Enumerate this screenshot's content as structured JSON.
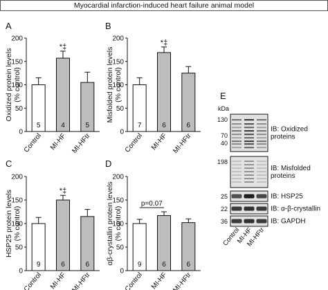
{
  "header": {
    "title": "Myocardial infarction-induced heart failure animal model"
  },
  "chart_data": [
    {
      "type": "bar",
      "panel": "A",
      "ylabel": "Oxidized protein levels\n(% control)",
      "categories": [
        "Control",
        "MI-HF",
        "MI-HFtr"
      ],
      "values": [
        100,
        157,
        105
      ],
      "errors": [
        15,
        15,
        22
      ],
      "n": [
        "5",
        "4",
        "5"
      ],
      "bar_colors": [
        "#ffffff",
        "#bdbdbd",
        "#bdbdbd"
      ],
      "ylim": [
        0,
        200
      ],
      "yticks": [
        0,
        50,
        100,
        150,
        200
      ],
      "annotations": [
        {
          "category": "MI-HF",
          "text": "*‡"
        }
      ]
    },
    {
      "type": "bar",
      "panel": "B",
      "ylabel": "Misfolded protein levels\n(% control)",
      "categories": [
        "Control",
        "MI-HF",
        "MI-HFtr"
      ],
      "values": [
        100,
        169,
        125
      ],
      "errors": [
        15,
        12,
        14
      ],
      "n": [
        "7",
        "6",
        "6"
      ],
      "bar_colors": [
        "#ffffff",
        "#bdbdbd",
        "#bdbdbd"
      ],
      "ylim": [
        0,
        200
      ],
      "yticks": [
        0,
        50,
        100,
        150,
        200
      ],
      "annotations": [
        {
          "category": "MI-HF",
          "text": "*‡"
        }
      ]
    },
    {
      "type": "bar",
      "panel": "C",
      "ylabel": "HSP25 protein levels\n(% control)",
      "categories": [
        "Control",
        "MI-HF",
        "MI-HFtr"
      ],
      "values": [
        100,
        150,
        115
      ],
      "errors": [
        13,
        10,
        15
      ],
      "n": [
        "9",
        "6",
        "6"
      ],
      "bar_colors": [
        "#ffffff",
        "#bdbdbd",
        "#bdbdbd"
      ],
      "ylim": [
        0,
        200
      ],
      "yticks": [
        0,
        50,
        100,
        150,
        200
      ],
      "annotations": [
        {
          "category": "MI-HF",
          "text": "*‡"
        }
      ]
    },
    {
      "type": "bar",
      "panel": "D",
      "ylabel": "αβ-crystallin protein levels\n(% control)",
      "categories": [
        "Control",
        "MI-HF",
        "MI-HFtr"
      ],
      "values": [
        100,
        117,
        102
      ],
      "errors": [
        9,
        8,
        8
      ],
      "n": [
        "9",
        "6",
        "6"
      ],
      "bar_colors": [
        "#ffffff",
        "#bdbdbd",
        "#bdbdbd"
      ],
      "ylim": [
        0,
        200
      ],
      "yticks": [
        0,
        50,
        100,
        150,
        200
      ],
      "annotations": [
        {
          "between": [
            "Control",
            "MI-HF"
          ],
          "text": "p=0.07"
        }
      ]
    }
  ],
  "blot": {
    "panel": "E",
    "unit": "kDa",
    "lanes": [
      "Control",
      "MI-HF",
      "MI-HFtr"
    ],
    "rows": [
      {
        "label": "IB: Oxidized\nproteins",
        "markers": [
          "130",
          "70",
          "40"
        ]
      },
      {
        "label": "IB: Misfolded\nproteins",
        "markers": [
          "198"
        ]
      },
      {
        "label": "IB: HSP25",
        "markers": [
          "25"
        ]
      },
      {
        "label": "IB: α-β-crystallin",
        "markers": [
          "22"
        ]
      },
      {
        "label": "IB: GAPDH",
        "markers": [
          "36"
        ]
      }
    ]
  }
}
